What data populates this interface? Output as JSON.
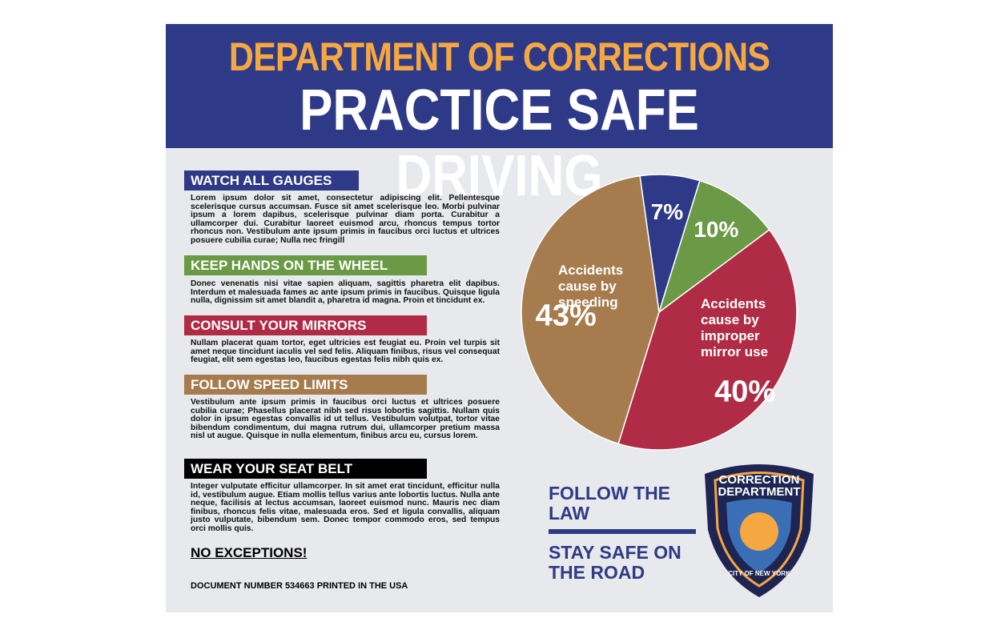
{
  "header": {
    "title": "DEPARTMENT OF CORRECTIONS",
    "subtitle": "PRACTICE SAFE DRIVING"
  },
  "sections": [
    {
      "heading": "WATCH ALL GAUGES",
      "color": "#2e3a87",
      "body": "Lorem ipsum dolor sit amet, consectetur adipiscing elit. Pellentesque scelerisque cursus accumsan. Fusce sit amet scelerisque leo. Morbi pulvinar ipsum a lorem dapibus, scelerisque pulvinar diam porta. Curabitur a ullamcorper dui. Curabitur laoreet euismod arcu, rhoncus tempus tortor rhoncus non. Vestibulum ante ipsum primis in faucibus orci luctus et ultrices posuere cubilia curae; Nulla nec fringill"
    },
    {
      "heading": "KEEP HANDS ON THE WHEEL",
      "color": "#6a9a45",
      "body": "Donec venenatis nisi vitae sapien aliquam, sagittis pharetra elit dapibus. Interdum et malesuada fames ac ante ipsum primis in faucibus. Quisque ligula nulla, dignissim sit amet blandit a, pharetra id magna. Proin et tincidunt ex."
    },
    {
      "heading": "CONSULT YOUR MIRRORS",
      "color": "#b02c46",
      "body": "Nullam placerat quam tortor, eget ultricies est feugiat eu. Proin vel turpis sit amet neque tincidunt iaculis vel sed felis. Aliquam finibus, risus vel consequat feugiat, elit sem egestas leo, faucibus egestas felis nibh quis ex."
    },
    {
      "heading": "FOLLOW SPEED LIMITS",
      "color": "#a67c4e",
      "body": "Vestibulum ante ipsum primis in faucibus orci luctus et ultrices posuere cubilia curae; Phasellus placerat nibh sed risus lobortis sagittis. Nullam quis dolor in ipsum egestas convallis id ut tellus. Vestibulum volutpat, tortor vitae bibendum condimentum, dui magna rutrum dui, ullamcorper pretium massa nisl ut augue. Quisque in nulla elementum, finibus arcu eu, cursus lorem."
    },
    {
      "heading": "WEAR YOUR SEAT BELT",
      "color": "#000000",
      "body": "Integer vulputate efficitur ullamcorper. In sit amet erat tincidunt, efficitur nulla id, vestibulum augue. Etiam mollis tellus varius ante lobortis luctus. Nulla ante neque, facilisis at lectus accumsan, laoreet euismod nunc. Mauris nec diam finibus, rhoncus felis vitae, malesuada eros. Sed et ligula convallis, aliquam justo vulputate, bibendum sem. Donec tempor commodo eros, sed tempus orci mollis quis."
    }
  ],
  "closing": "NO EXCEPTIONS!",
  "footer": "DOCUMENT NUMBER 534663 PRINTED IN THE USA",
  "slogans": [
    "FOLLOW THE LAW",
    "STAY SAFE ON THE ROAD"
  ],
  "logo": {
    "top": "CORRECTION DEPARTMENT",
    "bottom": "CITY OF NEW YORK"
  },
  "chart_data": {
    "type": "pie",
    "categories": [
      null,
      null,
      "Accidents cause by improper mirror use",
      "Accidents cause by speeding"
    ],
    "values": [
      7,
      10,
      40,
      43
    ],
    "value_labels": [
      "7%",
      "10%",
      "40%",
      "43%"
    ],
    "colors": [
      "#2e3a87",
      "#6a9a45",
      "#b02c46",
      "#a67c4e"
    ]
  }
}
